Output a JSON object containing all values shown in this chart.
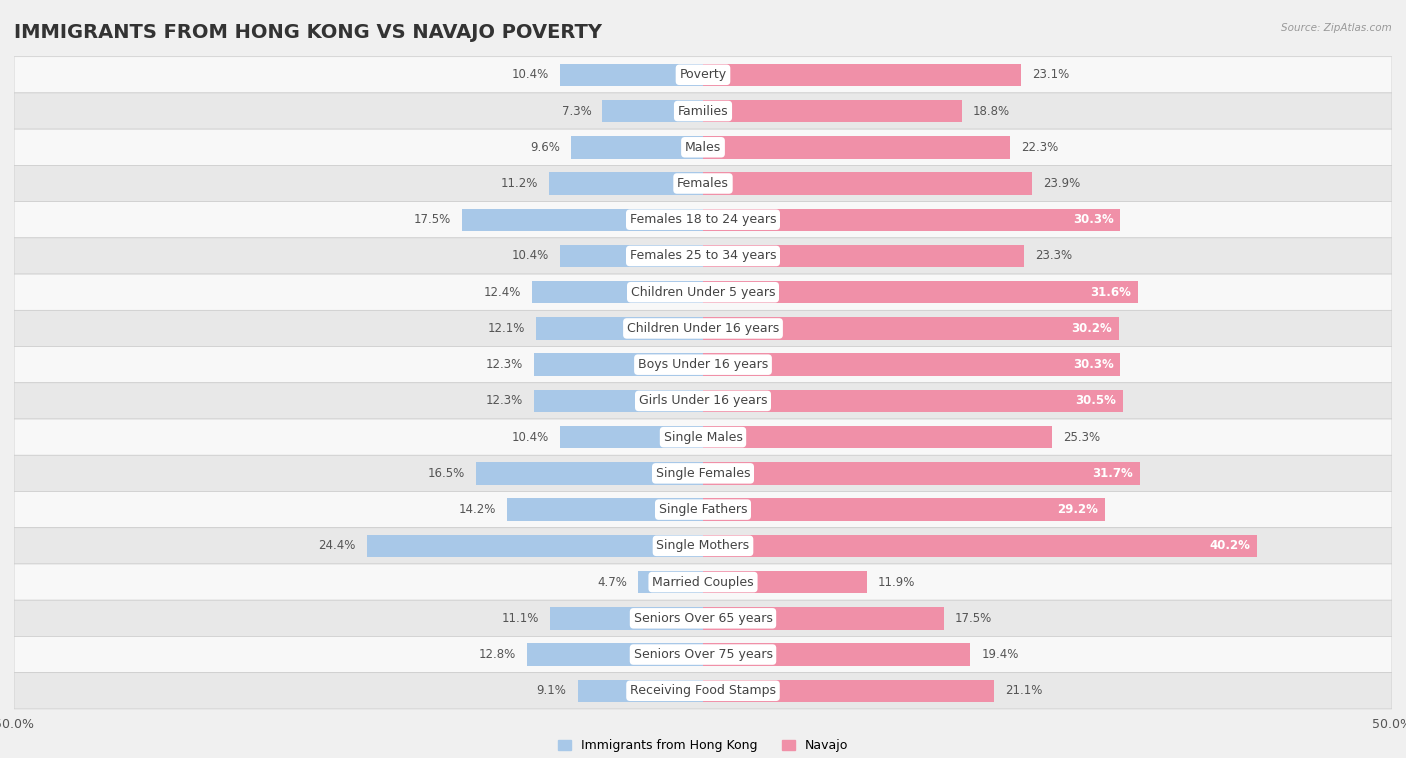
{
  "title": "IMMIGRANTS FROM HONG KONG VS NAVAJO POVERTY",
  "source": "Source: ZipAtlas.com",
  "categories": [
    "Poverty",
    "Families",
    "Males",
    "Females",
    "Females 18 to 24 years",
    "Females 25 to 34 years",
    "Children Under 5 years",
    "Children Under 16 years",
    "Boys Under 16 years",
    "Girls Under 16 years",
    "Single Males",
    "Single Females",
    "Single Fathers",
    "Single Mothers",
    "Married Couples",
    "Seniors Over 65 years",
    "Seniors Over 75 years",
    "Receiving Food Stamps"
  ],
  "hk_values": [
    10.4,
    7.3,
    9.6,
    11.2,
    17.5,
    10.4,
    12.4,
    12.1,
    12.3,
    12.3,
    10.4,
    16.5,
    14.2,
    24.4,
    4.7,
    11.1,
    12.8,
    9.1
  ],
  "navajo_values": [
    23.1,
    18.8,
    22.3,
    23.9,
    30.3,
    23.3,
    31.6,
    30.2,
    30.3,
    30.5,
    25.3,
    31.7,
    29.2,
    40.2,
    11.9,
    17.5,
    19.4,
    21.1
  ],
  "hk_color": "#a8c8e8",
  "navajo_color": "#f090a8",
  "bg_color": "#f0f0f0",
  "row_light": "#f8f8f8",
  "row_dark": "#e8e8e8",
  "axis_limit": 50.0,
  "legend_hk": "Immigrants from Hong Kong",
  "legend_navajo": "Navajo",
  "bar_height": 0.62,
  "title_fontsize": 14,
  "label_fontsize": 9,
  "value_fontsize": 8.5,
  "category_fontsize": 9
}
